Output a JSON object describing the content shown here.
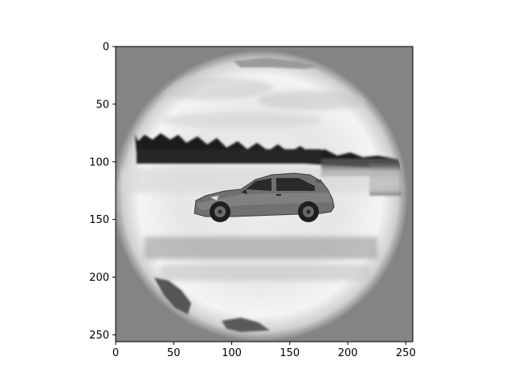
{
  "figure": {
    "type": "image",
    "description_hidden": true,
    "x_axis": {
      "min": 0,
      "max": 256,
      "ticks": [
        0,
        50,
        100,
        150,
        200,
        250
      ],
      "labels": [
        "0",
        "50",
        "100",
        "150",
        "200",
        "250"
      ]
    },
    "y_axis": {
      "min": 0,
      "max": 256,
      "ticks": [
        0,
        50,
        100,
        150,
        200,
        250
      ],
      "labels": [
        "0",
        "50",
        "100",
        "150",
        "200",
        "250"
      ],
      "inverted": true
    },
    "colors": {
      "background_gray": "#848484",
      "vignette_light": "#f4f4f4",
      "treeline": "#1c1c1c",
      "car_body": "#707070",
      "car_dark": "#2a2a2a"
    }
  }
}
